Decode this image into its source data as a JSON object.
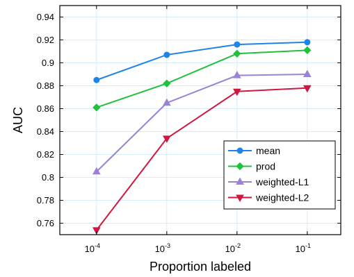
{
  "chart_data": {
    "type": "line",
    "xlabel": "Proportion labeled",
    "ylabel": "AUC",
    "x_scale": "log",
    "x": [
      0.0001,
      0.001,
      0.01,
      0.1
    ],
    "x_tick_labels": [
      {
        "base": "10",
        "exp": "-4"
      },
      {
        "base": "10",
        "exp": "-3"
      },
      {
        "base": "10",
        "exp": "-2"
      },
      {
        "base": "10",
        "exp": "-1"
      }
    ],
    "xlim": [
      3e-05,
      0.3
    ],
    "ylim": [
      0.75,
      0.95
    ],
    "y_ticks": [
      "0.76",
      "0.78",
      "0.8",
      "0.82",
      "0.84",
      "0.86",
      "0.88",
      "0.9",
      "0.92",
      "0.94"
    ],
    "grid": true,
    "legend_position": "bottom-right",
    "series": [
      {
        "name": "mean",
        "color": "#1f84e8",
        "marker": "circle",
        "values": [
          0.885,
          0.907,
          0.916,
          0.918
        ]
      },
      {
        "name": "prod",
        "color": "#22c03c",
        "marker": "diamond",
        "values": [
          0.861,
          0.882,
          0.908,
          0.911
        ]
      },
      {
        "name": "weighted-L1",
        "color": "#9a82d6",
        "marker": "triangle-up",
        "values": [
          0.805,
          0.865,
          0.889,
          0.89
        ]
      },
      {
        "name": "weighted-L2",
        "color": "#d0173f",
        "marker": "triangle-down",
        "values": [
          0.754,
          0.834,
          0.875,
          0.878
        ]
      }
    ],
    "grid_color": "#d6ecff"
  }
}
